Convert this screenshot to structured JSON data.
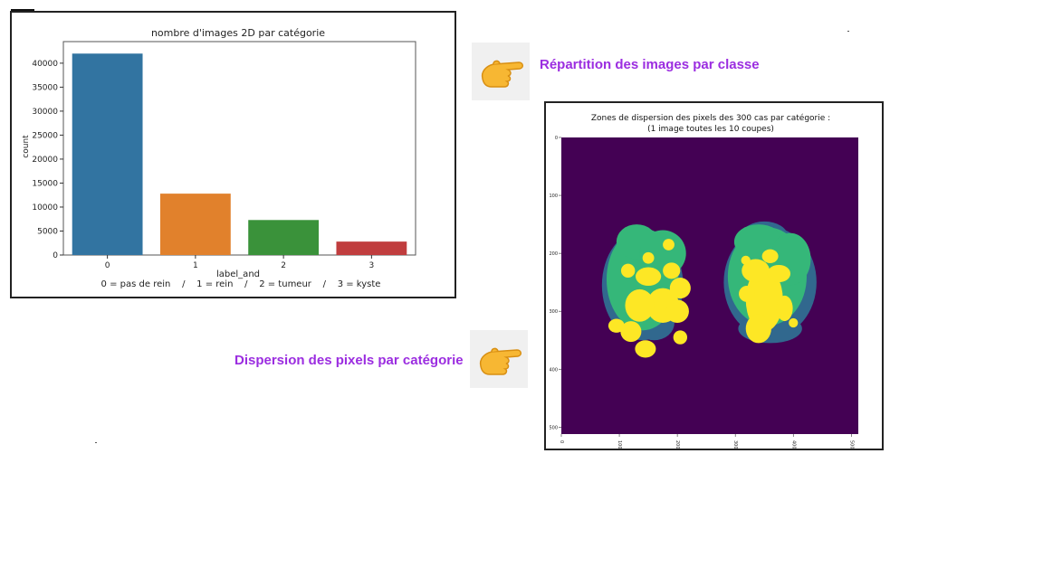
{
  "callouts": {
    "repartition": "Répartition des images par classe",
    "dispersion": "Dispersion des pixels par catégorie"
  },
  "icons": {
    "hand_1": "pointing-hand-right-icon",
    "hand_2": "pointing-hand-right-icon"
  },
  "chart_data": [
    {
      "type": "bar",
      "title": "nombre d'images 2D par catégorie",
      "xlabel": "label_and",
      "ylabel": "count",
      "caption": "0 = pas de rein    /    1 = rein    /    2 = tumeur    /    3 = kyste",
      "categories": [
        "0",
        "1",
        "2",
        "3"
      ],
      "values": [
        42000,
        12800,
        7300,
        2800
      ],
      "colors": [
        "#3274a1",
        "#e1812c",
        "#3a923a",
        "#c03d3e"
      ],
      "ylim": [
        0,
        44500
      ],
      "yticks": [
        0,
        5000,
        10000,
        15000,
        20000,
        25000,
        30000,
        35000,
        40000
      ],
      "ytick_labels": [
        "0",
        "5000",
        "10000",
        "15000",
        "20000",
        "25000",
        "30000",
        "35000",
        "40000"
      ],
      "grid": false
    },
    {
      "type": "heatmap",
      "title_line1": "Zones de dispersion des pixels des 300 cas par catégorie :",
      "title_line2": "(1 image toutes les 10 coupes)",
      "xlim": [
        0,
        512
      ],
      "ylim": [
        512,
        0
      ],
      "xtick_labels": [
        "0",
        "100",
        "200",
        "300",
        "400",
        "500"
      ],
      "ytick_labels": [
        "0",
        "100",
        "200",
        "300",
        "400",
        "500"
      ],
      "colors": {
        "background": "#440154",
        "category_1": "#31688e",
        "category_2": "#35b779",
        "category_3": "#fde725"
      }
    }
  ]
}
